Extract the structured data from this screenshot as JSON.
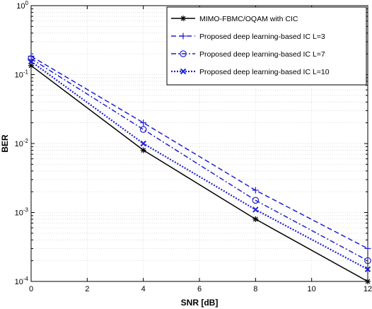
{
  "chart_data": {
    "type": "line",
    "xlabel": "SNR [dB]",
    "ylabel": "BER",
    "xlim": [
      0,
      12
    ],
    "ylim": [
      0.0001,
      1
    ],
    "yscale": "log",
    "grid": true,
    "legend_position": "top-right",
    "x": [
      0,
      4,
      8,
      12
    ],
    "x_ticks": [
      "0",
      "2",
      "4",
      "6",
      "8",
      "10",
      "12"
    ],
    "y_ticks": [
      {
        "base": "10",
        "exp": "0"
      },
      {
        "base": "10",
        "exp": "-1"
      },
      {
        "base": "10",
        "exp": "-2"
      },
      {
        "base": "10",
        "exp": "-3"
      },
      {
        "base": "10",
        "exp": "-4"
      }
    ],
    "series": [
      {
        "name": "MIMO-FBMC/OQAM with CIC",
        "values": [
          0.135,
          0.008,
          0.0008,
          0.0001
        ],
        "color": "#000000",
        "dash": "solid",
        "marker": "asterisk"
      },
      {
        "name": "Proposed deep learning-based IC L=3",
        "values": [
          0.185,
          0.02,
          0.0021,
          0.0003
        ],
        "color": "#1f1fd6",
        "dash": "dashed",
        "marker": "plus"
      },
      {
        "name": "Proposed  deep learning-based IC L=7",
        "values": [
          0.17,
          0.016,
          0.0015,
          0.0002
        ],
        "color": "#1f1fd6",
        "dash": "dashdot",
        "marker": "circle"
      },
      {
        "name": "Proposed  deep learning-based IC L=10",
        "values": [
          0.155,
          0.01,
          0.0011,
          0.00015
        ],
        "color": "#1f1fd6",
        "dash": "dotted",
        "marker": "x"
      }
    ]
  }
}
